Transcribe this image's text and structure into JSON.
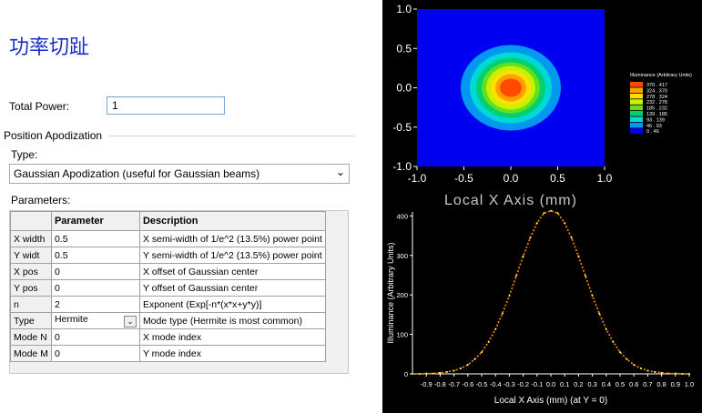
{
  "title": "功率切趾",
  "total_power": {
    "label": "Total Power:",
    "value": "1"
  },
  "position_apodization": {
    "section_label": "Position Apodization",
    "type_label": "Type:",
    "type_value": "Gaussian Apodization (useful for Gaussian beams)",
    "params_label": "Parameters:"
  },
  "table": {
    "headers": [
      "Parameter",
      "Description"
    ],
    "rows": [
      {
        "name": "X width",
        "value": "0.5",
        "desc": "X semi-width of 1/e^2 (13.5%) power point"
      },
      {
        "name": "Y widt",
        "value": "0.5",
        "desc": "Y semi-width of 1/e^2 (13.5%) power point"
      },
      {
        "name": "X pos",
        "value": "0",
        "desc": "X offset of Gaussian center"
      },
      {
        "name": "Y pos",
        "value": "0",
        "desc": "Y offset of Gaussian center"
      },
      {
        "name": "n",
        "value": "2",
        "desc": "Exponent (Exp[-n*(x*x+y*y)]"
      },
      {
        "name": "Type",
        "value": "Hermite",
        "desc": "Mode type (Hermite is most common)"
      },
      {
        "name": "Mode N",
        "value": "0",
        "desc": "X mode index"
      },
      {
        "name": "Mode M",
        "value": "0",
        "desc": "Y mode index"
      }
    ]
  },
  "heatmap": {
    "x_ticks": [
      "-1.0",
      "-0.5",
      "0.0",
      "0.5",
      "1.0"
    ],
    "y_ticks": [
      "1.0",
      "0.5",
      "0.0",
      "-0.5",
      "-1.0"
    ],
    "xlabel": "Local X Axis (mm)",
    "legend_title": "Illuminance (Arbitrary Units)",
    "legend": [
      {
        "range": "370 . 417",
        "color": "#ff4a00"
      },
      {
        "range": "324 . 370",
        "color": "#ffa000"
      },
      {
        "range": "278 . 324",
        "color": "#ffe000"
      },
      {
        "range": "232 . 278",
        "color": "#c8f000"
      },
      {
        "range": "185 . 232",
        "color": "#60e020"
      },
      {
        "range": "139 . 185",
        "color": "#00d070"
      },
      {
        "range": "93 . 139",
        "color": "#00d8d8"
      },
      {
        "range": "46 . 93",
        "color": "#0098f0"
      },
      {
        "range": "0 . 46",
        "color": "#0000f0"
      }
    ]
  },
  "chart_data": {
    "type": "line",
    "xlabel": "Local X Axis (mm) (at Y = 0)",
    "ylabel": "Illuminance (Arbitrary Units)",
    "x_ticks": [
      "-0.9",
      "-0.8",
      "-0.7",
      "-0.6",
      "-0.5",
      "-0.4",
      "-0.3",
      "-0.2",
      "-0.1",
      "0.0",
      "0.1",
      "0.2",
      "0.3",
      "0.4",
      "0.5",
      "0.6",
      "0.7",
      "0.8",
      "0.9",
      "1.0"
    ],
    "y_ticks": [
      "0",
      "100",
      "200",
      "300",
      "400"
    ],
    "xlim": [
      -1.0,
      1.0
    ],
    "ylim": [
      0,
      410
    ],
    "series": [
      {
        "color": "#ff8c00",
        "x": [
          -1.0,
          -0.95,
          -0.9,
          -0.85,
          -0.8,
          -0.75,
          -0.7,
          -0.65,
          -0.6,
          -0.55,
          -0.5,
          -0.45,
          -0.4,
          -0.35,
          -0.3,
          -0.25,
          -0.2,
          -0.15,
          -0.1,
          -0.05,
          0.0,
          0.05,
          0.1,
          0.15,
          0.2,
          0.25,
          0.3,
          0.35,
          0.4,
          0.45,
          0.5,
          0.55,
          0.6,
          0.65,
          0.7,
          0.75,
          0.8,
          0.85,
          0.9,
          0.95,
          1.0
        ],
        "y": [
          0,
          0,
          1,
          1,
          3,
          5,
          8,
          14,
          23,
          37,
          55,
          81,
          113,
          153,
          198,
          248,
          298,
          344,
          382,
          407,
          413,
          407,
          382,
          344,
          298,
          248,
          198,
          153,
          113,
          81,
          55,
          37,
          23,
          14,
          8,
          5,
          3,
          1,
          1,
          0,
          0
        ]
      }
    ]
  }
}
